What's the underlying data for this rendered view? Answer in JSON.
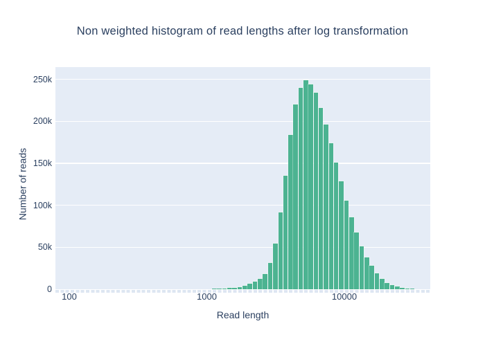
{
  "title": "Non weighted histogram of read lengths after log transformation",
  "x_axis": {
    "label": "Read length",
    "scale": "log",
    "ticks": [
      {
        "label": "100",
        "value": 100
      },
      {
        "label": "1000",
        "value": 1000
      },
      {
        "label": "10000",
        "value": 10000
      }
    ]
  },
  "y_axis": {
    "label": "Number of reads",
    "ticks": [
      {
        "label": "0",
        "value": 0
      },
      {
        "label": "50k",
        "value": 50000
      },
      {
        "label": "100k",
        "value": 100000
      },
      {
        "label": "150k",
        "value": 150000
      },
      {
        "label": "200k",
        "value": 200000
      },
      {
        "label": "250k",
        "value": 250000
      }
    ]
  },
  "colors": {
    "bar": "#4cb391",
    "plot_background": "#e5ecf6",
    "gridline": "#ffffff",
    "text": "#2a3f5f",
    "page_background": "#ffffff"
  },
  "chart_data": {
    "type": "bar",
    "subtype": "histogram",
    "title": "Non weighted histogram of read lengths after log transformation",
    "xlabel": "Read length",
    "ylabel": "Number of reads",
    "x_scale": "log",
    "xlim": [
      79,
      42000
    ],
    "ylim": [
      0,
      264500
    ],
    "grid": "horizontal-only",
    "legend": "none",
    "bin_edge_ratio": 1.0888,
    "bins": [
      {
        "x_left": 998,
        "count": 300
      },
      {
        "x_left": 1087,
        "count": 450
      },
      {
        "x_left": 1183,
        "count": 700
      },
      {
        "x_left": 1288,
        "count": 1000
      },
      {
        "x_left": 1403,
        "count": 1400
      },
      {
        "x_left": 1527,
        "count": 2000
      },
      {
        "x_left": 1662,
        "count": 2800
      },
      {
        "x_left": 1811,
        "count": 4200
      },
      {
        "x_left": 1971,
        "count": 6200
      },
      {
        "x_left": 2145,
        "count": 8800
      },
      {
        "x_left": 2337,
        "count": 12400
      },
      {
        "x_left": 2544,
        "count": 17900
      },
      {
        "x_left": 2769,
        "count": 31600
      },
      {
        "x_left": 3017,
        "count": 54400
      },
      {
        "x_left": 3284,
        "count": 91500
      },
      {
        "x_left": 3575,
        "count": 135200
      },
      {
        "x_left": 3894,
        "count": 183500
      },
      {
        "x_left": 4238,
        "count": 220000
      },
      {
        "x_left": 4613,
        "count": 240000
      },
      {
        "x_left": 5026,
        "count": 248500
      },
      {
        "x_left": 5470,
        "count": 244000
      },
      {
        "x_left": 5953,
        "count": 234000
      },
      {
        "x_left": 6485,
        "count": 216000
      },
      {
        "x_left": 7060,
        "count": 196500
      },
      {
        "x_left": 7685,
        "count": 174000
      },
      {
        "x_left": 8371,
        "count": 150500
      },
      {
        "x_left": 9112,
        "count": 128300
      },
      {
        "x_left": 9919,
        "count": 105800
      },
      {
        "x_left": 10807,
        "count": 86000
      },
      {
        "x_left": 11761,
        "count": 67200
      },
      {
        "x_left": 12802,
        "count": 51400
      },
      {
        "x_left": 13949,
        "count": 38000
      },
      {
        "x_left": 15183,
        "count": 27800
      },
      {
        "x_left": 16525,
        "count": 19200
      },
      {
        "x_left": 18003,
        "count": 12500
      },
      {
        "x_left": 19595,
        "count": 7500
      },
      {
        "x_left": 21330,
        "count": 4600
      },
      {
        "x_left": 23240,
        "count": 3000
      },
      {
        "x_left": 25290,
        "count": 2000
      },
      {
        "x_left": 27530,
        "count": 1200
      },
      {
        "x_left": 29985,
        "count": 700
      },
      {
        "x_left": 32640,
        "count": 400
      }
    ]
  }
}
